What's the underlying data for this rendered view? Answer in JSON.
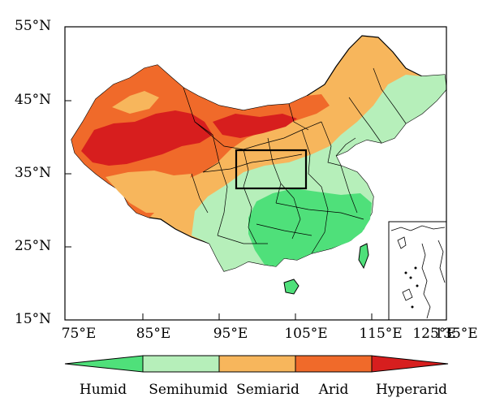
{
  "map": {
    "lat_ticks": [
      "55°N",
      "45°N",
      "35°N",
      "25°N",
      "15°N"
    ],
    "lon_ticks": [
      "75°E",
      "85°E",
      "95°E",
      "105°E",
      "115°E",
      "125°E",
      "135°E"
    ],
    "extent": {
      "lon": [
        73,
        135
      ],
      "lat": [
        15,
        55
      ]
    },
    "study_box": {
      "lon": [
        101,
        111
      ],
      "lat": [
        33,
        38
      ]
    },
    "zones": [
      {
        "name": "humid-zone",
        "color": "#4fe07a"
      },
      {
        "name": "semihumid-zone",
        "color": "#b6efba"
      },
      {
        "name": "semiarid-zone",
        "color": "#f7b65c"
      },
      {
        "name": "arid-zone",
        "color": "#f06a2a"
      },
      {
        "name": "hyperarid-zone",
        "color": "#d71e1e"
      }
    ]
  },
  "legend": {
    "labels": [
      "Humid",
      "Semihumid",
      "Semiarid",
      "Arid",
      "Hyperarid"
    ],
    "colors": [
      "#4fe07a",
      "#b6efba",
      "#f7b65c",
      "#f06a2a",
      "#d71e1e"
    ]
  }
}
